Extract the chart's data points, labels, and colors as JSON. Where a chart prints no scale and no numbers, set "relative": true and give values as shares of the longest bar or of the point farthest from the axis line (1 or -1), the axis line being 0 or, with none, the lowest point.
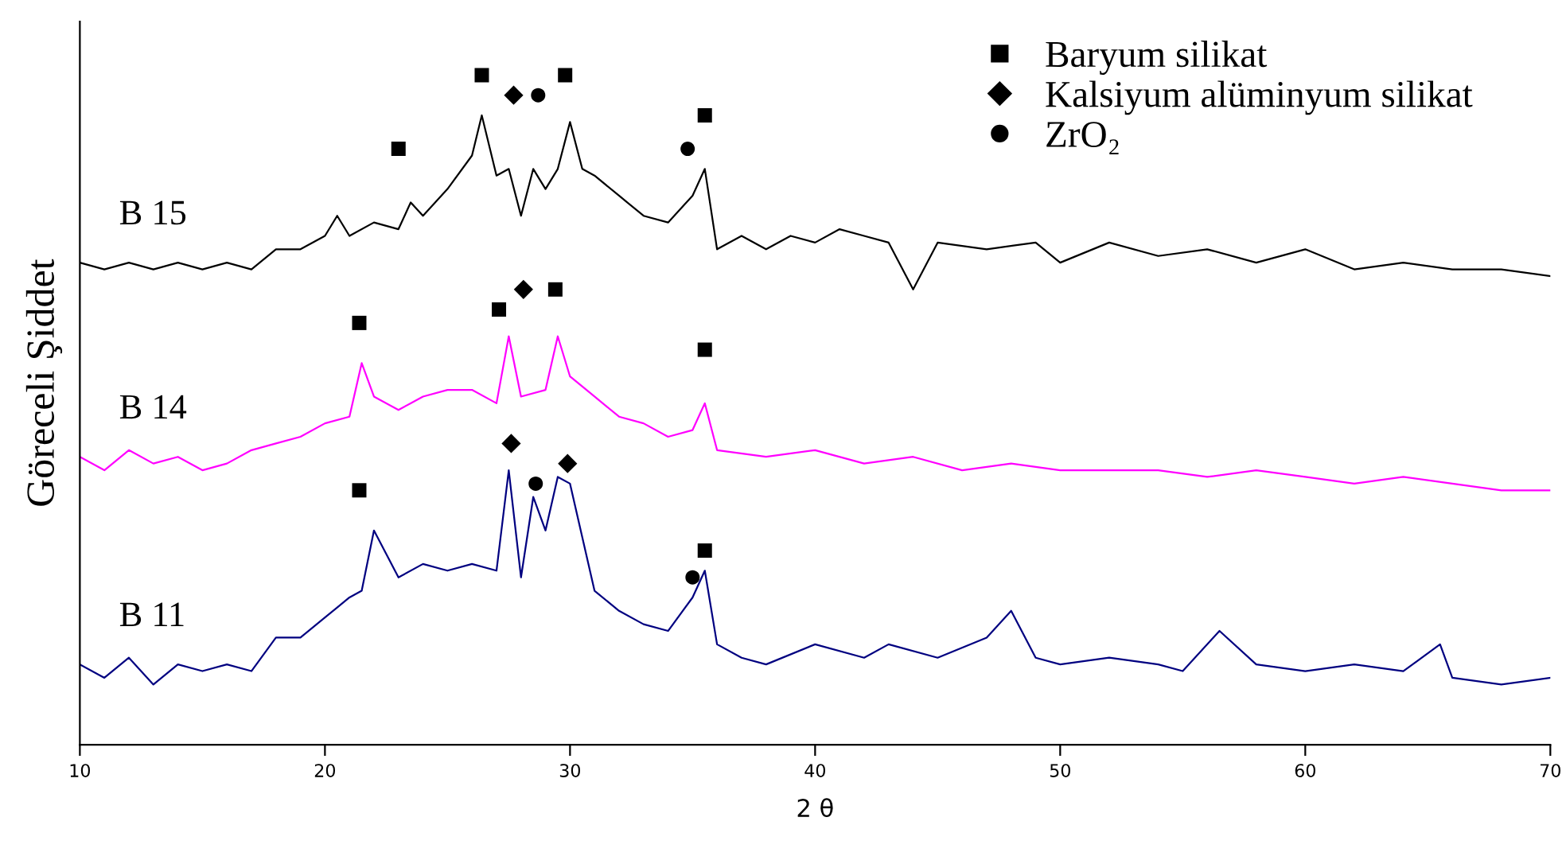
{
  "chart_data": {
    "type": "line",
    "relative": true,
    "xlabel": "2 θ",
    "ylabel": "Göreceli Şiddet",
    "xlim": [
      10,
      70
    ],
    "xticks": [
      10,
      20,
      30,
      40,
      50,
      60,
      70
    ],
    "grid": false,
    "legend": "top right",
    "tick_labels": "x",
    "marker": "none",
    "series": [
      {
        "name": "B 15",
        "color": "#000000",
        "x": [
          10,
          11,
          12,
          13,
          14,
          15,
          16,
          17,
          18,
          19,
          20,
          20.5,
          21,
          22,
          23,
          23.5,
          24,
          25,
          26,
          26.4,
          27,
          27.5,
          28,
          28.5,
          29,
          29.5,
          30,
          30.5,
          31,
          32,
          33,
          34,
          35,
          35.5,
          36,
          37,
          38,
          39,
          40,
          41,
          42,
          43,
          44,
          45,
          47,
          49,
          50,
          52,
          54,
          56,
          58,
          60,
          62,
          64,
          66,
          68,
          70
        ],
        "values": [
          0.72,
          0.71,
          0.72,
          0.71,
          0.72,
          0.71,
          0.72,
          0.71,
          0.74,
          0.74,
          0.76,
          0.79,
          0.76,
          0.78,
          0.77,
          0.81,
          0.79,
          0.83,
          0.88,
          0.94,
          0.85,
          0.86,
          0.79,
          0.86,
          0.83,
          0.86,
          0.93,
          0.86,
          0.85,
          0.82,
          0.79,
          0.78,
          0.82,
          0.86,
          0.74,
          0.76,
          0.74,
          0.76,
          0.75,
          0.77,
          0.76,
          0.75,
          0.68,
          0.75,
          0.74,
          0.75,
          0.72,
          0.75,
          0.73,
          0.74,
          0.72,
          0.74,
          0.71,
          0.72,
          0.71,
          0.71,
          0.7
        ]
      },
      {
        "name": "B 14",
        "color": "#ff00ff",
        "x": [
          10,
          11,
          12,
          13,
          14,
          15,
          16,
          17,
          18,
          19,
          20,
          21,
          21.5,
          22,
          23,
          24,
          25,
          26,
          27,
          27.5,
          28,
          29,
          29.5,
          30,
          31,
          32,
          33,
          34,
          35,
          35.5,
          36,
          38,
          40,
          42,
          44,
          46,
          48,
          50,
          52,
          54,
          56,
          58,
          60,
          62,
          64,
          66,
          68,
          70
        ],
        "values": [
          0.43,
          0.41,
          0.44,
          0.42,
          0.43,
          0.41,
          0.42,
          0.44,
          0.45,
          0.46,
          0.48,
          0.49,
          0.57,
          0.52,
          0.5,
          0.52,
          0.53,
          0.53,
          0.51,
          0.61,
          0.52,
          0.53,
          0.61,
          0.55,
          0.52,
          0.49,
          0.48,
          0.46,
          0.47,
          0.51,
          0.44,
          0.43,
          0.44,
          0.42,
          0.43,
          0.41,
          0.42,
          0.41,
          0.41,
          0.41,
          0.4,
          0.41,
          0.4,
          0.39,
          0.4,
          0.39,
          0.38,
          0.38
        ]
      },
      {
        "name": "B 11",
        "color": "#000080",
        "x": [
          10,
          11,
          12,
          13,
          14,
          15,
          16,
          17,
          18,
          19,
          20,
          21,
          21.5,
          22,
          23,
          24,
          25,
          26,
          27,
          27.5,
          28,
          28.5,
          29,
          29.5,
          30,
          30.5,
          31,
          32,
          33,
          34,
          35,
          35.5,
          36,
          37,
          38,
          40,
          42,
          43,
          45,
          47,
          48,
          49,
          50,
          52,
          54,
          55,
          56.5,
          58,
          60,
          62,
          64,
          65.5,
          66,
          68,
          70
        ],
        "values": [
          0.12,
          0.1,
          0.13,
          0.09,
          0.12,
          0.11,
          0.12,
          0.11,
          0.16,
          0.16,
          0.19,
          0.22,
          0.23,
          0.32,
          0.25,
          0.27,
          0.26,
          0.27,
          0.26,
          0.41,
          0.25,
          0.37,
          0.32,
          0.4,
          0.39,
          0.31,
          0.23,
          0.2,
          0.18,
          0.17,
          0.22,
          0.26,
          0.15,
          0.13,
          0.12,
          0.15,
          0.13,
          0.15,
          0.13,
          0.16,
          0.2,
          0.13,
          0.12,
          0.13,
          0.12,
          0.11,
          0.17,
          0.12,
          0.11,
          0.12,
          0.11,
          0.15,
          0.1,
          0.09,
          0.1
        ]
      },
      {
        "name": "Baryum silikat",
        "type": "scatter",
        "marker": "square",
        "color": "#000000",
        "x": [
          23.0,
          26.4,
          29.8,
          35.5,
          21.4,
          27.1,
          29.4,
          35.5,
          21.4,
          35.5
        ],
        "values": [
          0.89,
          1.0,
          1.0,
          0.94,
          0.63,
          0.65,
          0.68,
          0.59,
          0.38,
          0.29
        ]
      },
      {
        "name": "Kalsiyum alüminyum silikat",
        "type": "scatter",
        "marker": "diamond",
        "color": "#000000",
        "x": [
          27.7,
          28.1,
          27.6,
          29.9
        ],
        "values": [
          0.97,
          0.68,
          0.45,
          0.42
        ]
      },
      {
        "name": "ZrO₂",
        "type": "scatter",
        "marker": "circle",
        "color": "#000000",
        "x": [
          28.7,
          34.8,
          28.6,
          35.0
        ],
        "values": [
          0.97,
          0.89,
          0.39,
          0.25
        ]
      }
    ]
  }
}
